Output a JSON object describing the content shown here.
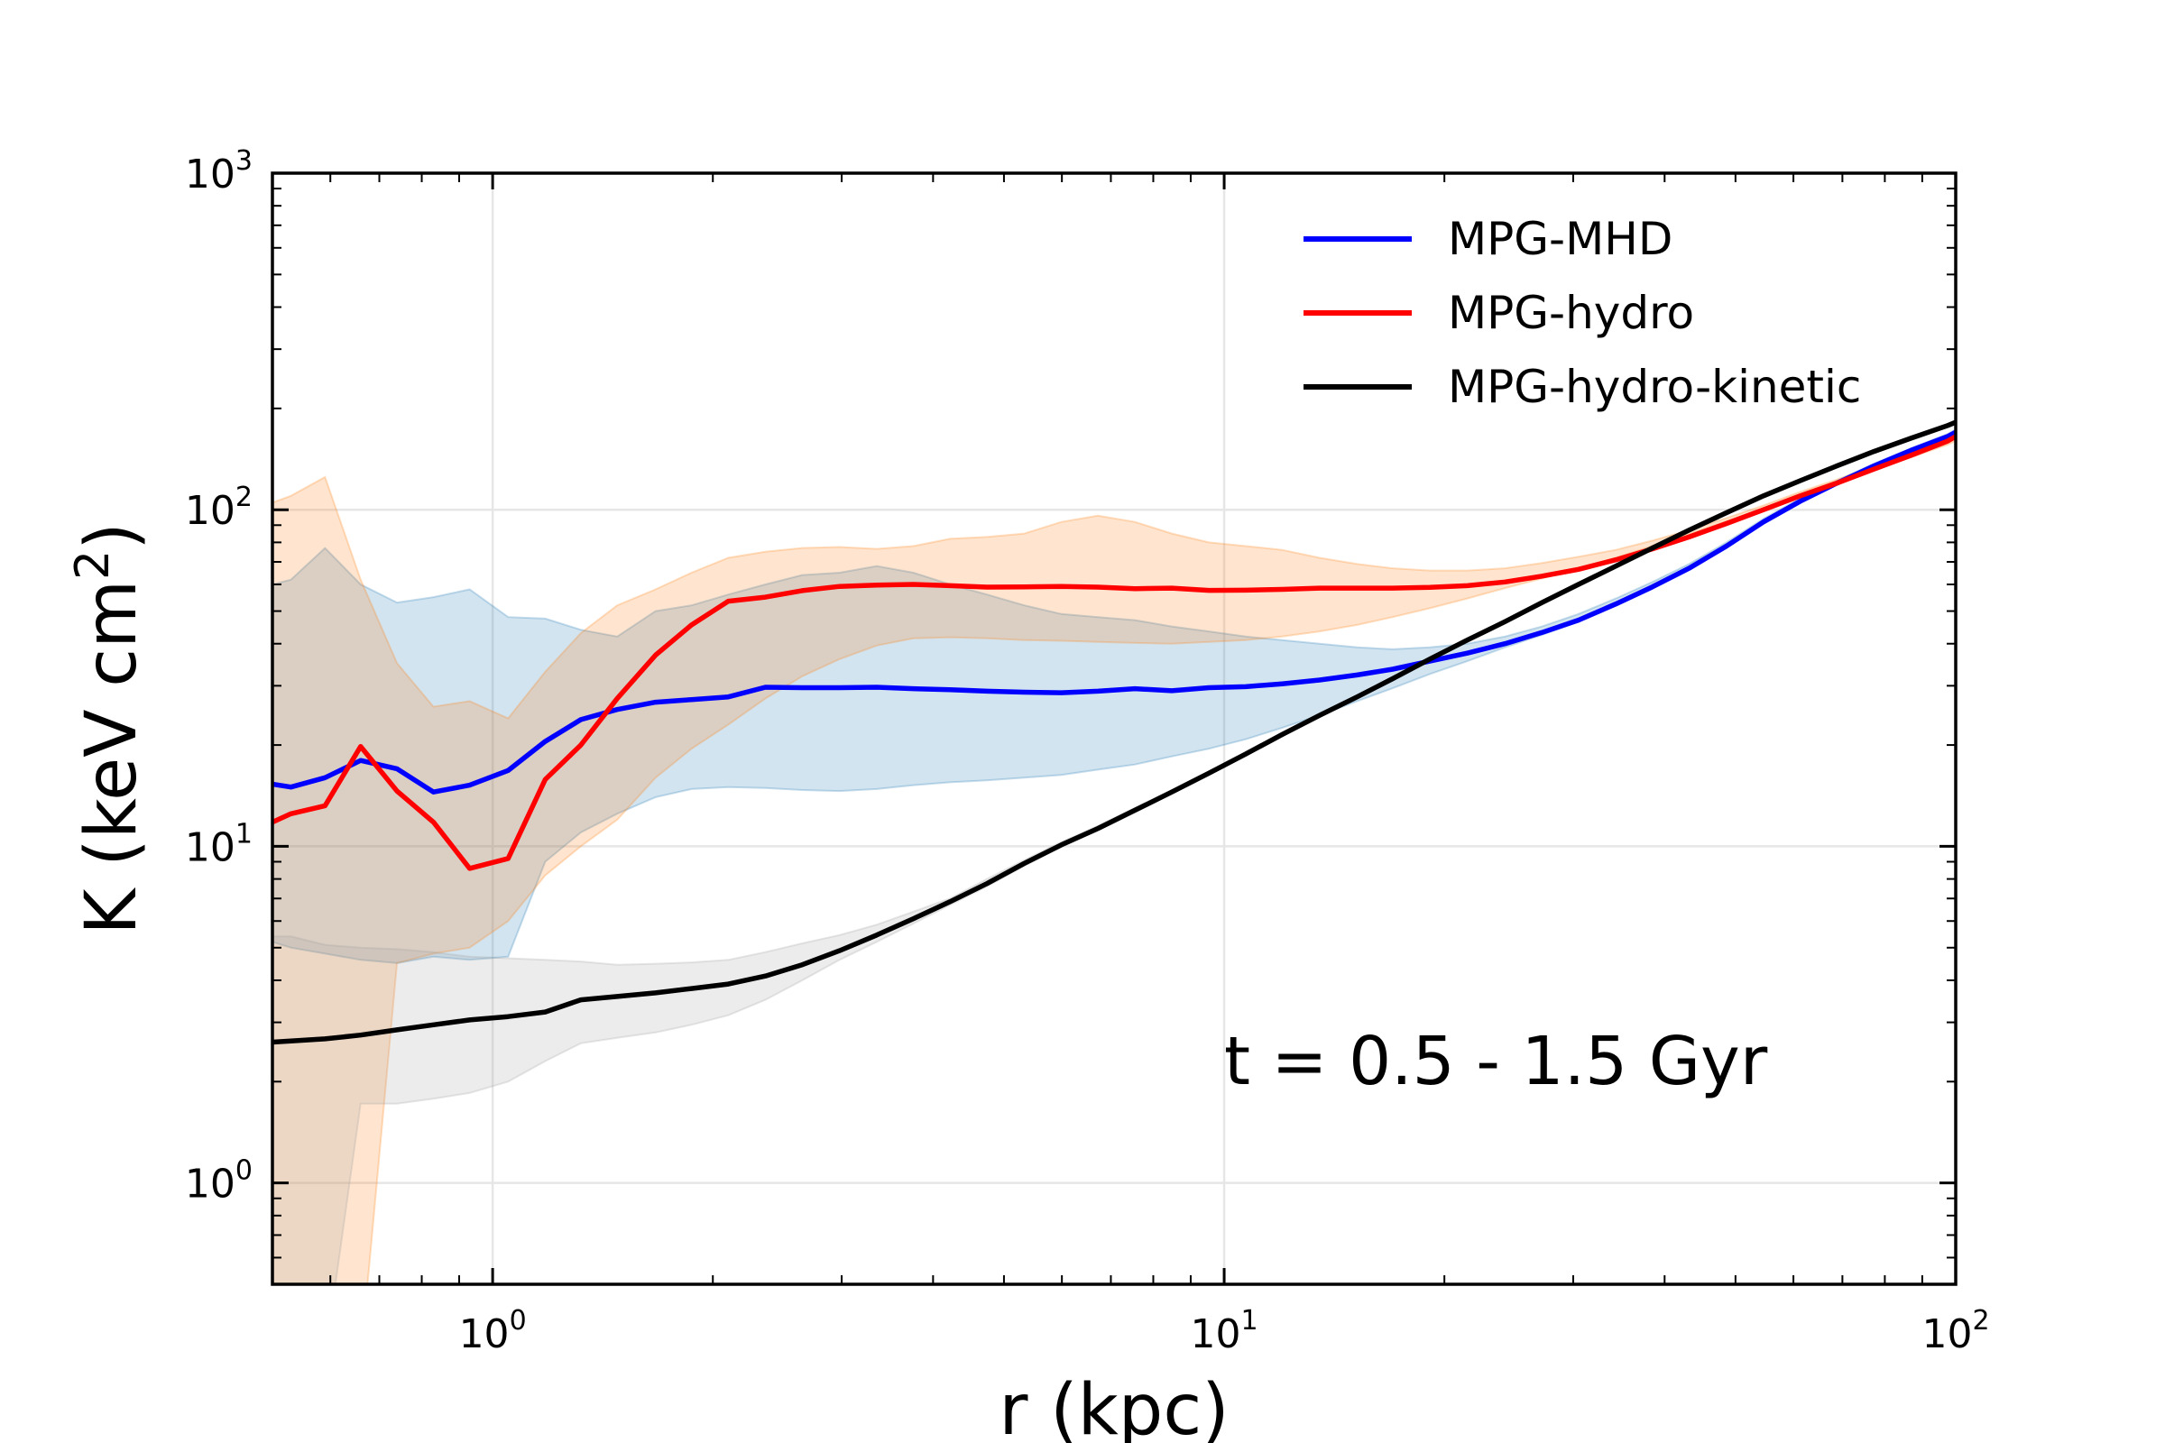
{
  "chart_data": {
    "type": "line",
    "title": "",
    "xlabel": "r (kpc)",
    "ylabel_main": "K (keV cm",
    "ylabel_sup": "2",
    "ylabel_tail": ")",
    "xscale": "log",
    "yscale": "log",
    "xlim": [
      0.5,
      100
    ],
    "ylim": [
      0.5,
      1000
    ],
    "grid": true,
    "legend_position": "top-right",
    "x_ticks": [
      {
        "value": 1,
        "base": "10",
        "exp": "0"
      },
      {
        "value": 10,
        "base": "10",
        "exp": "1"
      },
      {
        "value": 100,
        "base": "10",
        "exp": "2"
      }
    ],
    "y_ticks": [
      {
        "value": 1,
        "base": "10",
        "exp": "0"
      },
      {
        "value": 10,
        "base": "10",
        "exp": "1"
      },
      {
        "value": 100,
        "base": "10",
        "exp": "2"
      },
      {
        "value": 1000,
        "base": "10",
        "exp": "3"
      }
    ],
    "annotation": "t = 0.5 - 1.5 Gyr",
    "series": [
      {
        "name": "MPG-MHD",
        "color": "#0000ff",
        "band_color": "#1f77b4",
        "x": [
          0.5,
          0.53,
          0.59,
          0.66,
          0.74,
          0.83,
          0.93,
          1.05,
          1.18,
          1.32,
          1.48,
          1.67,
          1.87,
          2.1,
          2.36,
          2.65,
          2.98,
          3.35,
          3.76,
          4.22,
          4.74,
          5.33,
          5.99,
          6.72,
          7.55,
          8.48,
          9.53,
          10.7,
          12.0,
          13.5,
          15.2,
          17.0,
          19.1,
          21.5,
          24.2,
          27.2,
          30.5,
          34.3,
          38.5,
          43.2,
          48.6,
          54.6,
          61.3,
          68.8,
          77.3,
          86.8,
          97.5,
          100
        ],
        "y": [
          15.3,
          15.0,
          16.0,
          18.0,
          17.0,
          14.5,
          15.2,
          16.8,
          20.5,
          23.8,
          25.5,
          26.8,
          27.3,
          27.8,
          29.7,
          29.6,
          29.6,
          29.7,
          29.4,
          29.2,
          28.9,
          28.7,
          28.6,
          28.9,
          29.4,
          29.0,
          29.6,
          29.8,
          30.4,
          31.2,
          32.3,
          33.6,
          35.5,
          37.5,
          40.0,
          43.2,
          47.0,
          52.5,
          59.0,
          67.0,
          78.0,
          92.0,
          106.0,
          120.0,
          135.0,
          150.0,
          165.0,
          170.0
        ],
        "lower": [
          5.2,
          5.0,
          4.8,
          4.6,
          4.5,
          4.7,
          4.6,
          4.7,
          9.0,
          11.0,
          12.5,
          14.0,
          14.8,
          15.0,
          14.9,
          14.7,
          14.6,
          14.8,
          15.2,
          15.5,
          15.7,
          16.0,
          16.3,
          16.9,
          17.5,
          18.5,
          19.5,
          20.8,
          22.5,
          24.5,
          27.0,
          29.5,
          32.5,
          35.5,
          39.0,
          42.5,
          46.5,
          52.0,
          58.5,
          66.5,
          77.0,
          91.0,
          105.0,
          119.0,
          134.0,
          148.0,
          162.0,
          167.0
        ],
        "upper": [
          60.0,
          62.0,
          77.0,
          60.0,
          53.0,
          55.0,
          58.0,
          48.0,
          47.5,
          44.0,
          42.0,
          50.0,
          52.0,
          56.0,
          60.0,
          64.0,
          65.0,
          68.0,
          65.0,
          60.0,
          56.0,
          52.0,
          49.0,
          48.0,
          47.0,
          45.0,
          43.5,
          42.0,
          41.0,
          40.0,
          39.0,
          38.5,
          39.0,
          40.0,
          42.0,
          45.0,
          49.0,
          54.5,
          61.0,
          69.0,
          80.0,
          94.0,
          108.0,
          122.0,
          137.0,
          152.0,
          168.0,
          173.0
        ]
      },
      {
        "name": "MPG-hydro",
        "color": "#ff0000",
        "band_color": "#ff7f0e",
        "x": [
          0.5,
          0.53,
          0.59,
          0.66,
          0.74,
          0.83,
          0.93,
          1.05,
          1.18,
          1.32,
          1.48,
          1.67,
          1.87,
          2.1,
          2.36,
          2.65,
          2.98,
          3.35,
          3.76,
          4.22,
          4.74,
          5.33,
          5.99,
          6.72,
          7.55,
          8.48,
          9.53,
          10.7,
          12.0,
          13.5,
          15.2,
          17.0,
          19.1,
          21.5,
          24.2,
          27.2,
          30.5,
          34.3,
          38.5,
          43.2,
          48.6,
          54.6,
          61.3,
          68.8,
          77.3,
          86.8,
          97.5,
          100
        ],
        "y": [
          11.8,
          12.5,
          13.2,
          19.8,
          14.6,
          11.8,
          8.6,
          9.2,
          15.8,
          20.0,
          27.5,
          37.0,
          45.5,
          53.5,
          55.0,
          57.5,
          59.2,
          59.7,
          60.0,
          59.5,
          58.9,
          59.0,
          59.2,
          58.9,
          58.3,
          58.5,
          57.6,
          57.7,
          58.0,
          58.5,
          58.5,
          58.5,
          58.8,
          59.5,
          61.0,
          63.5,
          66.5,
          71.0,
          76.5,
          83.0,
          91.0,
          100.0,
          110.0,
          120.0,
          132.0,
          145.0,
          160.0,
          165.0
        ],
        "lower": [
          0.3,
          0.3,
          0.3,
          0.3,
          4.5,
          4.8,
          5.0,
          6.0,
          8.2,
          10.0,
          12.0,
          16.0,
          19.5,
          23.0,
          27.5,
          32.0,
          36.0,
          39.5,
          41.5,
          41.8,
          41.5,
          41.0,
          40.8,
          40.5,
          40.2,
          40.0,
          40.5,
          41.0,
          42.0,
          43.5,
          45.5,
          48.0,
          51.0,
          54.5,
          58.5,
          62.5,
          67.0,
          72.0,
          78.0,
          84.5,
          92.5,
          101.0,
          110.0,
          120.0,
          131.0,
          143.0,
          156.0,
          160.0
        ],
        "upper": [
          105.0,
          110.0,
          125.0,
          62.0,
          35.0,
          26.0,
          27.0,
          24.0,
          33.0,
          43.0,
          52.0,
          58.0,
          65.0,
          72.0,
          75.0,
          77.0,
          77.5,
          76.5,
          78.0,
          82.0,
          83.0,
          85.0,
          92.0,
          96.0,
          92.0,
          85.0,
          80.0,
          78.0,
          76.0,
          72.0,
          69.0,
          67.0,
          66.0,
          66.0,
          67.0,
          69.5,
          72.5,
          76.0,
          81.0,
          87.0,
          94.5,
          103.0,
          113.0,
          123.0,
          135.0,
          148.0,
          163.0,
          168.0
        ]
      },
      {
        "name": "MPG-hydro-kinetic",
        "color": "#000000",
        "band_color": "#a0a0a0",
        "x": [
          0.5,
          0.53,
          0.59,
          0.66,
          0.74,
          0.83,
          0.93,
          1.05,
          1.18,
          1.32,
          1.48,
          1.67,
          1.87,
          2.1,
          2.36,
          2.65,
          2.98,
          3.35,
          3.76,
          4.22,
          4.74,
          5.33,
          5.99,
          6.72,
          7.55,
          8.48,
          9.53,
          10.7,
          12.0,
          13.5,
          15.2,
          17.0,
          19.1,
          21.5,
          24.2,
          27.2,
          30.5,
          34.3,
          38.5,
          43.2,
          48.6,
          54.6,
          61.3,
          68.8,
          77.3,
          86.8,
          97.5,
          100
        ],
        "y": [
          2.62,
          2.64,
          2.68,
          2.75,
          2.85,
          2.95,
          3.05,
          3.12,
          3.22,
          3.5,
          3.58,
          3.67,
          3.78,
          3.9,
          4.12,
          4.45,
          4.9,
          5.45,
          6.1,
          6.85,
          7.75,
          8.9,
          10.1,
          11.3,
          12.8,
          14.5,
          16.5,
          18.8,
          21.5,
          24.5,
          27.8,
          31.5,
          36.0,
          41.0,
          46.5,
          53.0,
          60.0,
          68.0,
          77.0,
          87.0,
          98.0,
          110.0,
          122.0,
          135.0,
          149.0,
          163.0,
          178.0,
          182.0
        ],
        "lower": [
          0.3,
          0.3,
          0.3,
          1.72,
          1.72,
          1.78,
          1.85,
          2.0,
          2.3,
          2.6,
          2.7,
          2.8,
          2.95,
          3.15,
          3.5,
          4.0,
          4.6,
          5.2,
          5.9,
          6.7,
          7.6,
          8.75,
          10.0,
          11.2,
          12.7,
          14.4,
          16.3,
          18.6,
          21.3,
          24.3,
          27.6,
          31.3,
          35.8,
          40.8,
          46.3,
          52.8,
          59.8,
          67.8,
          76.8,
          86.8,
          97.8,
          109.8,
          121.8,
          134.8,
          148.8,
          162.8,
          177.8,
          181.8
        ],
        "upper": [
          5.4,
          5.4,
          5.1,
          5.0,
          4.95,
          4.85,
          4.7,
          4.65,
          4.6,
          4.55,
          4.45,
          4.48,
          4.52,
          4.6,
          4.85,
          5.15,
          5.45,
          5.85,
          6.4,
          7.0,
          8.0,
          9.1,
          10.3,
          11.5,
          13.0,
          14.7,
          16.7,
          19.0,
          21.7,
          24.7,
          28.0,
          31.7,
          36.2,
          41.2,
          46.7,
          53.2,
          60.2,
          68.2,
          77.2,
          87.2,
          98.2,
          110.2,
          122.2,
          135.2,
          149.2,
          163.2,
          178.2,
          182.2
        ]
      }
    ]
  }
}
